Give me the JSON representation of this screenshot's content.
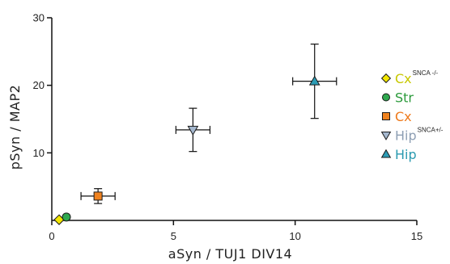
{
  "chart_data": {
    "type": "scatter",
    "xlabel": "aSyn / TUJ1 DIV14",
    "ylabel": "pSyn / MAP2",
    "xlim": [
      0,
      15
    ],
    "ylim": [
      0,
      30
    ],
    "x_ticks": [
      0,
      5,
      10,
      15
    ],
    "y_ticks": [
      10,
      20,
      30
    ],
    "legend_placement": "right",
    "series": [
      {
        "name": "Cx",
        "superscript": "SNCA -/-",
        "marker": "diamond",
        "color": "#f2e600",
        "text_color": "#c8c800",
        "x": 0.3,
        "y": 0.1,
        "x_err": 0,
        "y_err": 0
      },
      {
        "name": "Str",
        "superscript": "",
        "marker": "circle",
        "color": "#2fa84f",
        "text_color": "#2a9a3a",
        "x": 0.6,
        "y": 0.5,
        "x_err": 0,
        "y_err": 0
      },
      {
        "name": "Cx",
        "superscript": "",
        "marker": "square",
        "color": "#f0821e",
        "text_color": "#ee7a1c",
        "x": 1.9,
        "y": 3.6,
        "x_err": 0.7,
        "y_err": 1.1
      },
      {
        "name": "Hip",
        "superscript": "SNCA+/-",
        "marker": "triangle-down",
        "color": "#a5b8cf",
        "text_color": "#8e9fb4",
        "x": 5.8,
        "y": 13.4,
        "x_err": 0.7,
        "y_err": 3.2
      },
      {
        "name": "Hip",
        "superscript": "",
        "marker": "triangle-up",
        "color": "#2c9cb5",
        "text_color": "#2a9ab0",
        "x": 10.8,
        "y": 20.6,
        "x_err": 0.9,
        "y_err": 5.5
      }
    ]
  }
}
